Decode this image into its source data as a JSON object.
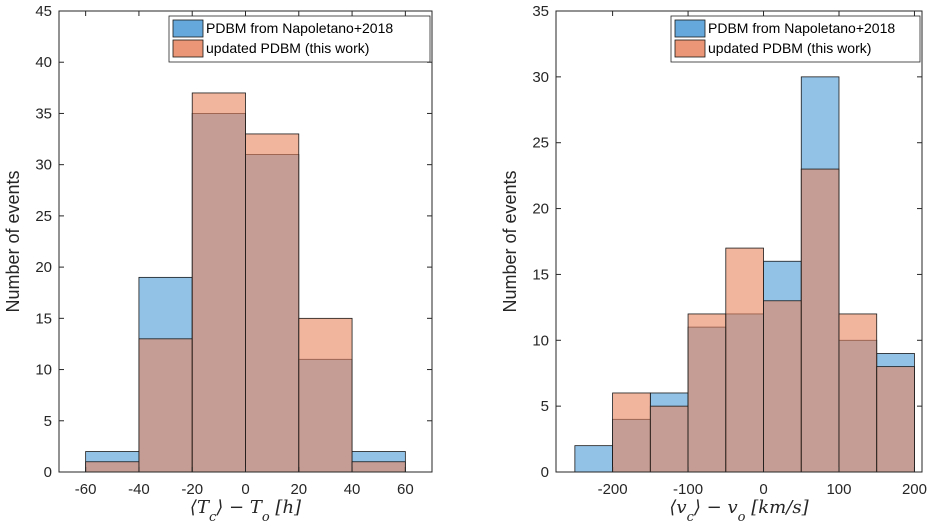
{
  "chart_data": [
    {
      "type": "bar",
      "xlabel": "⟨T_c⟩ − T_o [h]",
      "ylabel": "Number of events",
      "xlim": [
        -70,
        70
      ],
      "ylim": [
        0,
        45
      ],
      "xticks": [
        "-60",
        "-40",
        "-20",
        "0",
        "20",
        "40",
        "60"
      ],
      "yticks": [
        "0",
        "5",
        "10",
        "15",
        "20",
        "25",
        "30",
        "35",
        "40",
        "45"
      ],
      "bin_edges": [
        -60,
        -40,
        -20,
        0,
        20,
        40,
        60
      ],
      "series": [
        {
          "name": "PDBM from Napoletano+2018",
          "color": "#4a9ad6",
          "values": [
            2,
            19,
            35,
            31,
            11,
            2
          ]
        },
        {
          "name": "updated PDBM (this work)",
          "color": "#e8845e",
          "values": [
            1,
            13,
            37,
            33,
            15,
            1
          ]
        }
      ],
      "legend": "top-right",
      "grid": false
    },
    {
      "type": "bar",
      "xlabel": "⟨v_c⟩ − v_o [km/s]",
      "ylabel": "Number of events",
      "xlim": [
        -275,
        210
      ],
      "ylim": [
        0,
        35
      ],
      "xticks": [
        "-200",
        "-100",
        "0",
        "100",
        "200"
      ],
      "yticks": [
        "0",
        "5",
        "10",
        "15",
        "20",
        "25",
        "30",
        "35"
      ],
      "bin_edges": [
        -250,
        -200,
        -150,
        -100,
        -50,
        0,
        50,
        100,
        150,
        200
      ],
      "series": [
        {
          "name": "PDBM from Napoletano+2018",
          "color": "#4a9ad6",
          "values": [
            2,
            4,
            6,
            11,
            12,
            16,
            30,
            10,
            9
          ]
        },
        {
          "name": "updated PDBM (this work)",
          "color": "#e8845e",
          "values": [
            0,
            6,
            5,
            12,
            17,
            13,
            23,
            12,
            8
          ]
        }
      ],
      "legend": "top-right",
      "grid": false
    }
  ]
}
